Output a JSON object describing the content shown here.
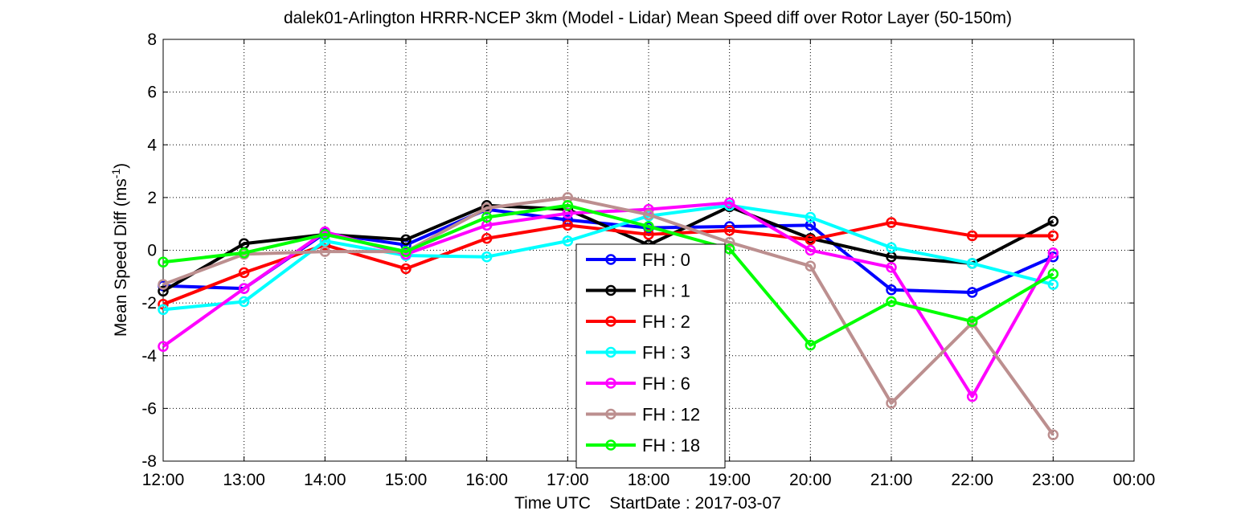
{
  "chart_data": {
    "type": "line",
    "title": "dalek01-Arlington HRRR-NCEP 3km (Model - Lidar) Mean Speed diff over Rotor Layer (50-150m)",
    "xlabel": "Time UTC    StartDate : 2017-03-07",
    "ylabel_main": "Mean Speed Diff (ms",
    "ylabel_sup": "-1",
    "ylabel_close": ")",
    "ylim": [
      -8,
      8
    ],
    "yticks": [
      "-8",
      "-6",
      "-4",
      "-2",
      "0",
      "2",
      "4",
      "6",
      "8"
    ],
    "x_categories": [
      "12:00",
      "13:00",
      "14:00",
      "15:00",
      "16:00",
      "17:00",
      "18:00",
      "19:00",
      "20:00",
      "21:00",
      "22:00",
      "23:00",
      "00:00"
    ],
    "grid": true,
    "legend_position": "bottom-center",
    "series": [
      {
        "name": "FH : 0",
        "color": "#0000ff",
        "values": [
          -1.35,
          -1.45,
          0.65,
          0.2,
          1.55,
          1.15,
          0.85,
          0.9,
          0.95,
          -1.5,
          -1.6,
          -0.25
        ]
      },
      {
        "name": "FH : 1",
        "color": "#000000",
        "values": [
          -1.55,
          0.25,
          0.6,
          0.4,
          1.7,
          1.55,
          0.2,
          1.65,
          0.45,
          -0.25,
          -0.5,
          1.1
        ]
      },
      {
        "name": "FH : 2",
        "color": "#ff0000",
        "values": [
          -2.05,
          -0.85,
          0.2,
          -0.7,
          0.45,
          0.95,
          0.6,
          0.75,
          0.4,
          1.05,
          0.55,
          0.55
        ]
      },
      {
        "name": "FH : 3",
        "color": "#00ffff",
        "values": [
          -2.25,
          -1.95,
          0.35,
          -0.2,
          -0.25,
          0.35,
          1.3,
          1.7,
          1.25,
          0.1,
          -0.5,
          -1.3
        ]
      },
      {
        "name": "FH : 6",
        "color": "#ff00ff",
        "values": [
          -3.65,
          -1.45,
          0.7,
          -0.15,
          0.95,
          1.4,
          1.55,
          1.8,
          0.0,
          -0.65,
          -5.55,
          -0.1
        ]
      },
      {
        "name": "FH : 12",
        "color": "#bc8f8f",
        "values": [
          -1.3,
          -0.15,
          -0.05,
          -0.05,
          1.6,
          2.0,
          1.35,
          0.3,
          -0.6,
          -5.8,
          -2.75,
          -7.0
        ]
      },
      {
        "name": "FH : 18",
        "color": "#00ff00",
        "values": [
          -0.45,
          -0.1,
          0.6,
          -0.05,
          1.25,
          1.7,
          0.9,
          0.05,
          -3.6,
          -1.95,
          -2.7,
          -0.9
        ]
      }
    ]
  }
}
